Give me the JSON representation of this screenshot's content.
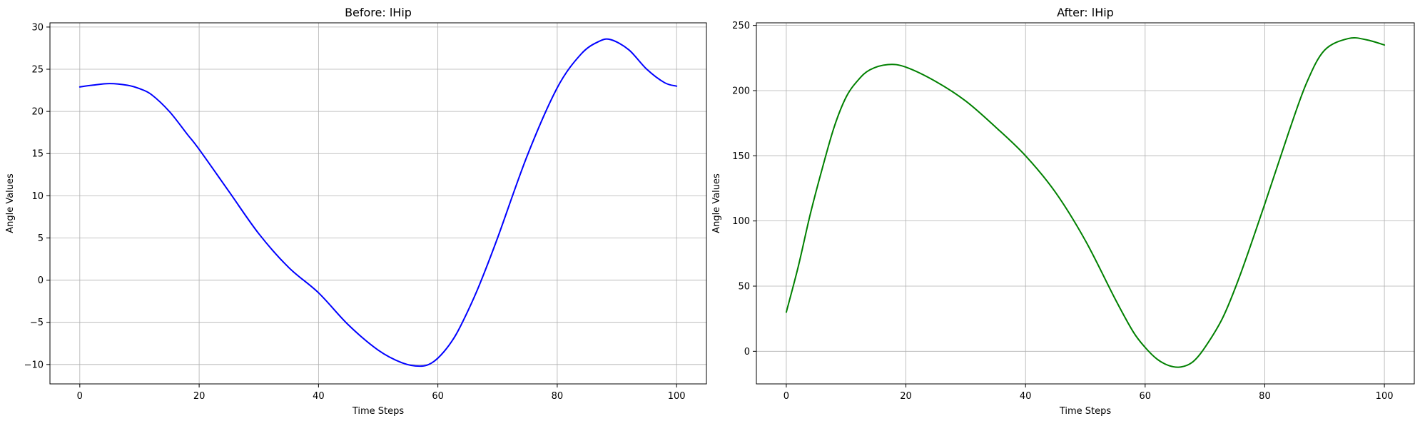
{
  "chart_data": [
    {
      "type": "line",
      "title": "Before: lHip",
      "xlabel": "Time Steps",
      "ylabel": "Angle Values",
      "xlim": [
        -5,
        105
      ],
      "ylim": [
        -12.3,
        30.5
      ],
      "xticks": [
        0,
        20,
        40,
        60,
        80,
        100
      ],
      "yticks": [
        -10,
        -5,
        0,
        5,
        10,
        15,
        20,
        25,
        30
      ],
      "grid": true,
      "series": [
        {
          "color": "#0000ff",
          "x": [
            0,
            2,
            5,
            8,
            10,
            12,
            15,
            18,
            20,
            25,
            30,
            35,
            40,
            45,
            50,
            54,
            57,
            59,
            61,
            63,
            65,
            67,
            70,
            75,
            80,
            84,
            87,
            89,
            92,
            95,
            98,
            100
          ],
          "y": [
            22.9,
            23.1,
            23.3,
            23.1,
            22.7,
            22.0,
            20.0,
            17.3,
            15.5,
            10.5,
            5.5,
            1.5,
            -1.5,
            -5.3,
            -8.3,
            -9.8,
            -10.2,
            -9.8,
            -8.5,
            -6.5,
            -3.7,
            -0.5,
            5.0,
            14.8,
            22.8,
            26.8,
            28.3,
            28.5,
            27.3,
            25.0,
            23.4,
            23.0
          ]
        }
      ]
    },
    {
      "type": "line",
      "title": "After: lHip",
      "xlabel": "Time Steps",
      "ylabel": "Angle Values",
      "xlim": [
        -5,
        105
      ],
      "ylim": [
        -25,
        252
      ],
      "xticks": [
        0,
        20,
        40,
        60,
        80,
        100
      ],
      "yticks": [
        0,
        50,
        100,
        150,
        200,
        250
      ],
      "grid": true,
      "series": [
        {
          "color": "#008000",
          "x": [
            0,
            2,
            4,
            6,
            8,
            10,
            12,
            14,
            17,
            20,
            25,
            30,
            35,
            40,
            45,
            50,
            55,
            58,
            60,
            62,
            64,
            66,
            68,
            70,
            73,
            76,
            80,
            84,
            87,
            90,
            94,
            97,
            100
          ],
          "y": [
            30,
            65,
            105,
            140,
            172,
            195,
            208,
            216,
            220,
            218,
            207,
            192,
            172,
            150,
            122,
            85,
            40,
            15,
            3,
            -6,
            -11,
            -12,
            -8,
            3,
            26,
            60,
            113,
            168,
            206,
            231,
            240,
            239,
            235
          ]
        }
      ]
    }
  ]
}
